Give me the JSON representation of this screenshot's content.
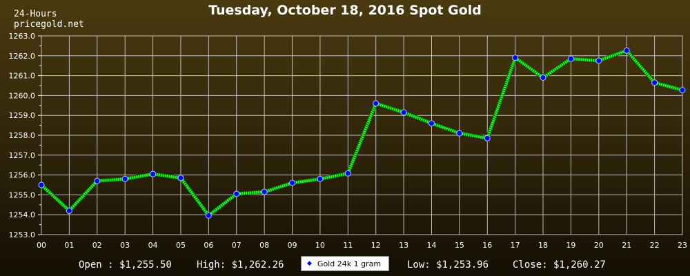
{
  "chart_data": {
    "type": "line",
    "title": "Tuesday, October 18, 2016 Spot Gold",
    "subtitle_line1": "24-Hours",
    "subtitle_line2": "pricegold.net",
    "x_ticks": [
      "00",
      "01",
      "02",
      "03",
      "04",
      "05",
      "06",
      "07",
      "08",
      "09",
      "10",
      "11",
      "12",
      "13",
      "14",
      "15",
      "16",
      "17",
      "18",
      "19",
      "20",
      "21",
      "22",
      "23"
    ],
    "y_ticks": [
      "1253.0",
      "1254.0",
      "1255.0",
      "1256.0",
      "1257.0",
      "1258.0",
      "1259.0",
      "1260.0",
      "1261.0",
      "1262.0",
      "1263.0"
    ],
    "ylim": [
      1253.0,
      1263.0
    ],
    "grid": true,
    "series": [
      {
        "name": "Gold 24k 1 gram",
        "x": [
          0,
          1,
          2,
          3,
          4,
          5,
          6,
          7,
          8,
          9,
          10,
          11,
          12,
          13,
          14,
          15,
          16,
          17,
          18,
          19,
          20,
          21,
          22,
          23
        ],
        "values": [
          1255.5,
          1254.2,
          1255.7,
          1255.8,
          1256.05,
          1255.85,
          1253.96,
          1255.05,
          1255.15,
          1255.6,
          1255.8,
          1256.08,
          1259.6,
          1259.15,
          1258.6,
          1258.1,
          1257.85,
          1261.9,
          1260.9,
          1261.85,
          1261.75,
          1262.26,
          1260.65,
          1260.27
        ],
        "line_color": "#22ff22",
        "marker_color": "#0000ff"
      }
    ],
    "legend_placement": "bottom-center"
  },
  "stats": {
    "open": "Open : $1,255.50",
    "high": "High: $1,262.26",
    "low": "Low: $1,253.96",
    "close": "Close: $1,260.27"
  },
  "legend": {
    "label": "Gold 24k 1 gram"
  }
}
